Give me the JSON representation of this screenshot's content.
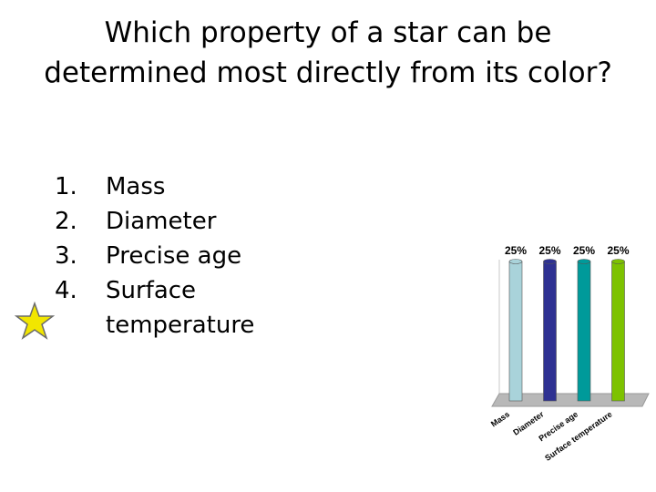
{
  "question": "Which property of a star can be determined most directly from its color?",
  "options": [
    {
      "number": "1.",
      "text": "Mass"
    },
    {
      "number": "2.",
      "text": "Diameter"
    },
    {
      "number": "3.",
      "text": "Precise age"
    },
    {
      "number": "4.",
      "text": "Surface temperature"
    }
  ],
  "chart_data": {
    "type": "bar",
    "categories": [
      "Mass",
      "Diameter",
      "Precise age",
      "Surface temperature"
    ],
    "values": [
      25,
      25,
      25,
      25
    ],
    "value_labels": [
      "25%",
      "25%",
      "25%",
      "25%"
    ],
    "colors": [
      "#a9d3da",
      "#2e3192",
      "#009a9a",
      "#7dc200"
    ]
  }
}
